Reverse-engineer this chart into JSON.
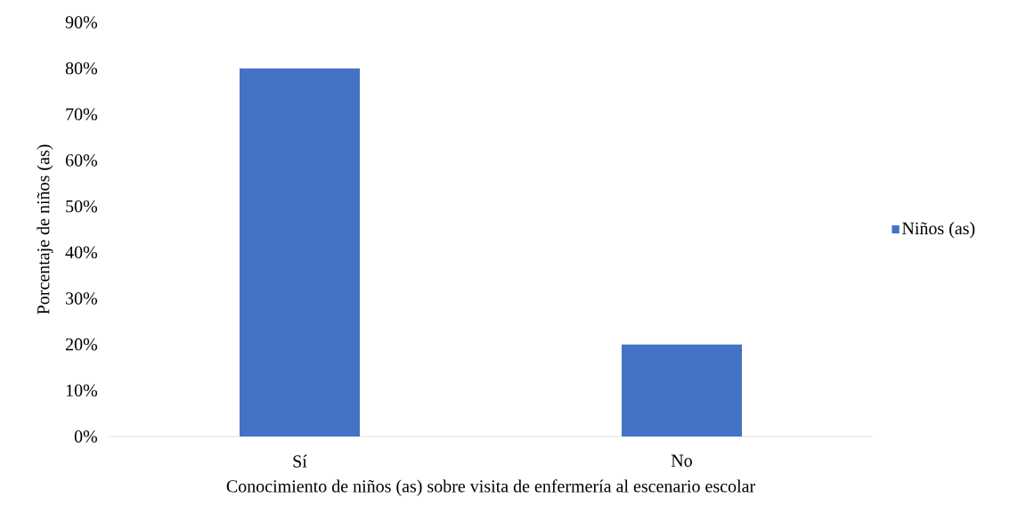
{
  "chart_data": {
    "type": "bar",
    "xlabel": "Conocimiento de niños (as) sobre visita de enfermería al escenario escolar",
    "ylabel": "Porcentaje de niños (as)",
    "categories": [
      "Sí",
      "No"
    ],
    "series": [
      {
        "name": "Niños (as)",
        "color": "#4472c4",
        "values": [
          80,
          20
        ]
      }
    ],
    "ylim": [
      0,
      90
    ],
    "yticks": [
      {
        "value": 0,
        "label": "0%"
      },
      {
        "value": 10,
        "label": "10%"
      },
      {
        "value": 20,
        "label": "20%"
      },
      {
        "value": 30,
        "label": "30%"
      },
      {
        "value": 40,
        "label": "40%"
      },
      {
        "value": 50,
        "label": "50%"
      },
      {
        "value": 60,
        "label": "60%"
      },
      {
        "value": 70,
        "label": "70%"
      },
      {
        "value": 80,
        "label": "80%"
      },
      {
        "value": 90,
        "label": "90%"
      }
    ],
    "grid": false,
    "legend": "right"
  }
}
